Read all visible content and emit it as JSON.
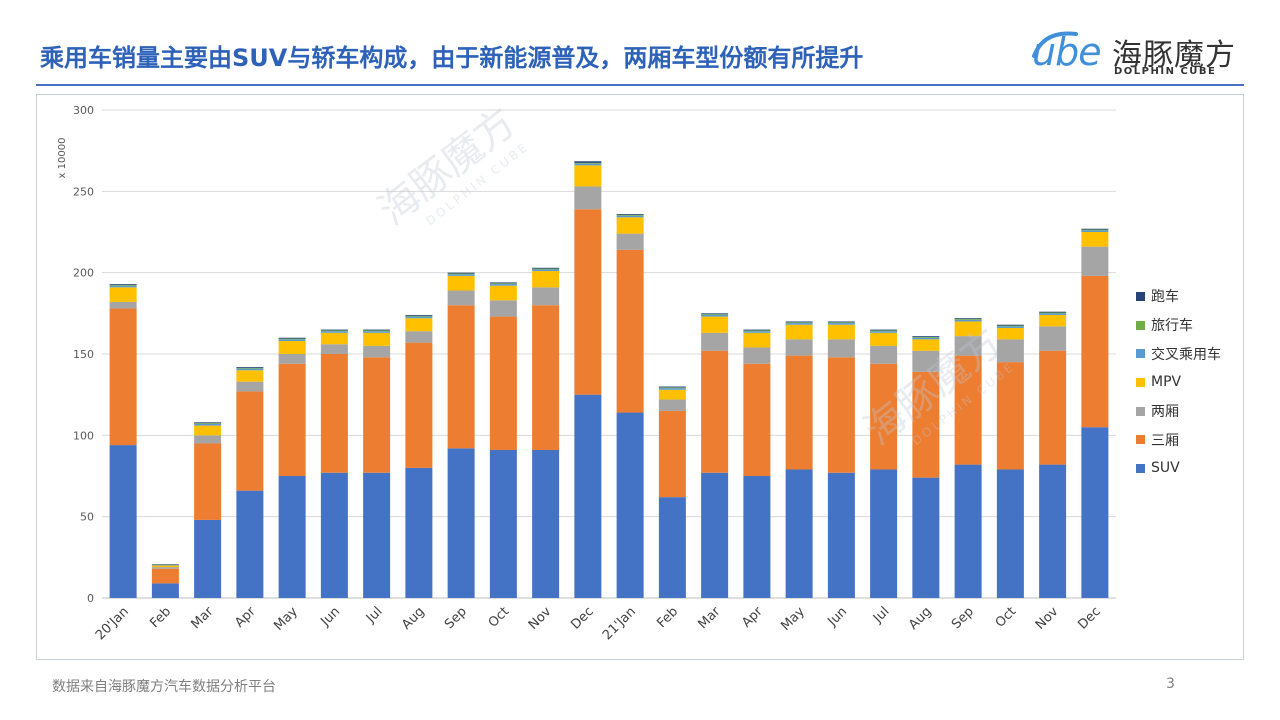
{
  "slide": {
    "title": "乘用车销量主要由SUV与轿车构成，由于新能源普及，两厢车型份额有所提升",
    "footer": "数据来自海豚魔方汽车数据分析平台",
    "page_number": "3"
  },
  "logo": {
    "cube_text": "ube",
    "cn_text": "海豚魔方",
    "en_text": "DOLPHIN CUBE"
  },
  "watermark": {
    "cn_text": "海豚魔方",
    "en_text": "DOLPHIN CUBE"
  },
  "chart_data": {
    "type": "bar",
    "stacked": true,
    "unit_label": "x 10000",
    "ylim": [
      0,
      300
    ],
    "yticks": [
      0,
      50,
      100,
      150,
      200,
      250,
      300
    ],
    "grid": true,
    "legend_position": "right",
    "categories": [
      "20'Jan",
      "Feb",
      "Mar",
      "Apr",
      "May",
      "Jun",
      "Jul",
      "Aug",
      "Sep",
      "Oct",
      "Nov",
      "Dec",
      "21'Jan",
      "Feb",
      "Mar",
      "Apr",
      "May",
      "Jun",
      "Jul",
      "Aug",
      "Sep",
      "Oct",
      "Nov",
      "Dec"
    ],
    "series": [
      {
        "name": "SUV",
        "color": "#4472c4",
        "values": [
          94,
          9,
          48,
          66,
          75,
          77,
          77,
          80,
          92,
          91,
          91,
          125,
          114,
          62,
          77,
          75,
          79,
          77,
          79,
          74,
          82,
          79,
          82,
          105
        ]
      },
      {
        "name": "三厢",
        "color": "#ed7d31",
        "values": [
          84,
          9,
          47,
          61,
          69,
          73,
          71,
          77,
          88,
          82,
          89,
          114,
          100,
          53,
          75,
          69,
          70,
          71,
          65,
          65,
          67,
          66,
          70,
          93
        ]
      },
      {
        "name": "两厢",
        "color": "#a5a5a5",
        "values": [
          4,
          1,
          5,
          6,
          6,
          6,
          7,
          7,
          9,
          10,
          11,
          14,
          10,
          7,
          11,
          10,
          10,
          11,
          11,
          13,
          12,
          14,
          15,
          18
        ]
      },
      {
        "name": "MPV",
        "color": "#ffc000",
        "values": [
          9,
          1,
          6,
          7,
          8,
          7,
          8,
          8,
          9,
          9,
          10,
          13,
          10,
          6,
          10,
          9,
          9,
          9,
          8,
          7,
          9,
          7,
          7,
          9
        ]
      },
      {
        "name": "交叉乘用车",
        "color": "#5b9bd5",
        "values": [
          1,
          0.3,
          1,
          1,
          1,
          1,
          1,
          1,
          1,
          1,
          1,
          1,
          1,
          1,
          1,
          1,
          1,
          1,
          1,
          1,
          1,
          1,
          1,
          1
        ]
      },
      {
        "name": "旅行车",
        "color": "#70ad47",
        "values": [
          0.5,
          0.2,
          0.5,
          0.5,
          0.5,
          0.5,
          0.5,
          0.5,
          0.5,
          0.5,
          0.5,
          0.5,
          0.5,
          0.5,
          0.5,
          0.5,
          0.5,
          0.5,
          0.5,
          0.5,
          0.5,
          0.5,
          0.5,
          0.5
        ]
      },
      {
        "name": "跑车",
        "color": "#264478",
        "values": [
          0.5,
          0.3,
          0.5,
          0.5,
          0.5,
          0.5,
          0.5,
          0.5,
          0.5,
          0.5,
          0.5,
          1,
          0.5,
          0.5,
          0.5,
          0.5,
          0.5,
          0.5,
          0.5,
          0.5,
          0.5,
          0.5,
          0.5,
          0.5
        ]
      }
    ]
  }
}
